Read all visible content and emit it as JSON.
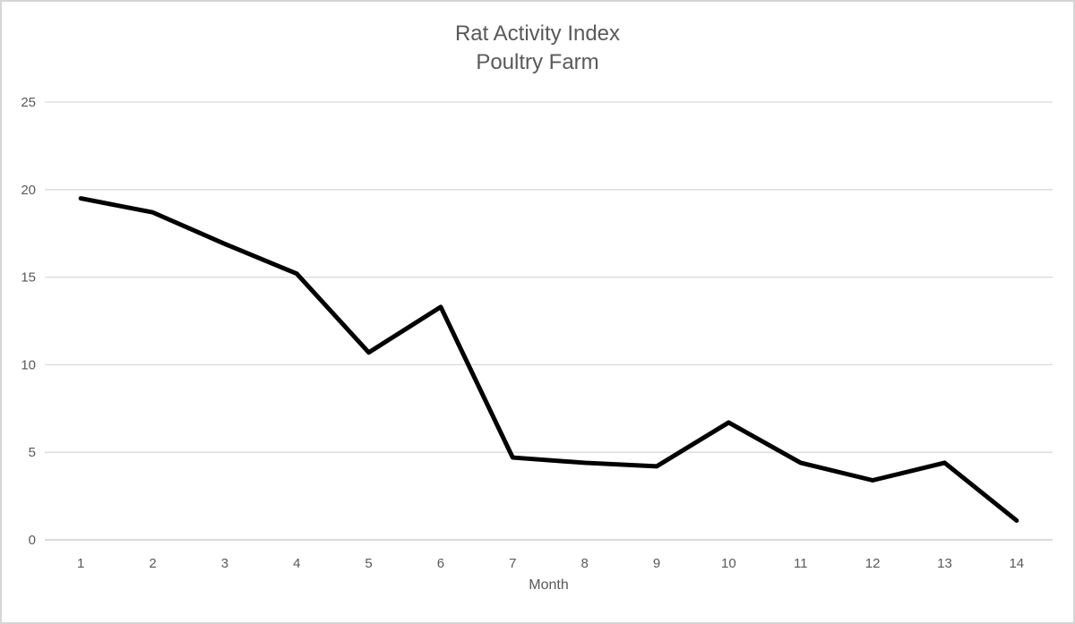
{
  "window": {
    "background_color": "#ffffff",
    "border_color": "#d6d6d6"
  },
  "chart_data": {
    "type": "line",
    "title": "Rat Activity Index",
    "subtitle": "Poultry Farm",
    "xlabel": "Month",
    "ylabel": "",
    "categories": [
      1,
      2,
      3,
      4,
      5,
      6,
      7,
      8,
      9,
      10,
      11,
      12,
      13,
      14
    ],
    "series": [
      {
        "name": "Rat Activity Index",
        "values": [
          19.5,
          18.7,
          16.9,
          15.2,
          10.7,
          13.3,
          4.7,
          4.4,
          4.2,
          6.7,
          4.4,
          3.4,
          4.4,
          1.1
        ]
      }
    ],
    "ylim": [
      0,
      25
    ],
    "yticks": [
      0,
      5,
      10,
      15,
      20,
      25
    ],
    "grid": true,
    "legend_position": "none",
    "line_color": "#000000",
    "line_width": 5,
    "grid_color": "#d9d9d9",
    "axis_line_color": "#c8c8c8",
    "text_color": "#595959"
  }
}
